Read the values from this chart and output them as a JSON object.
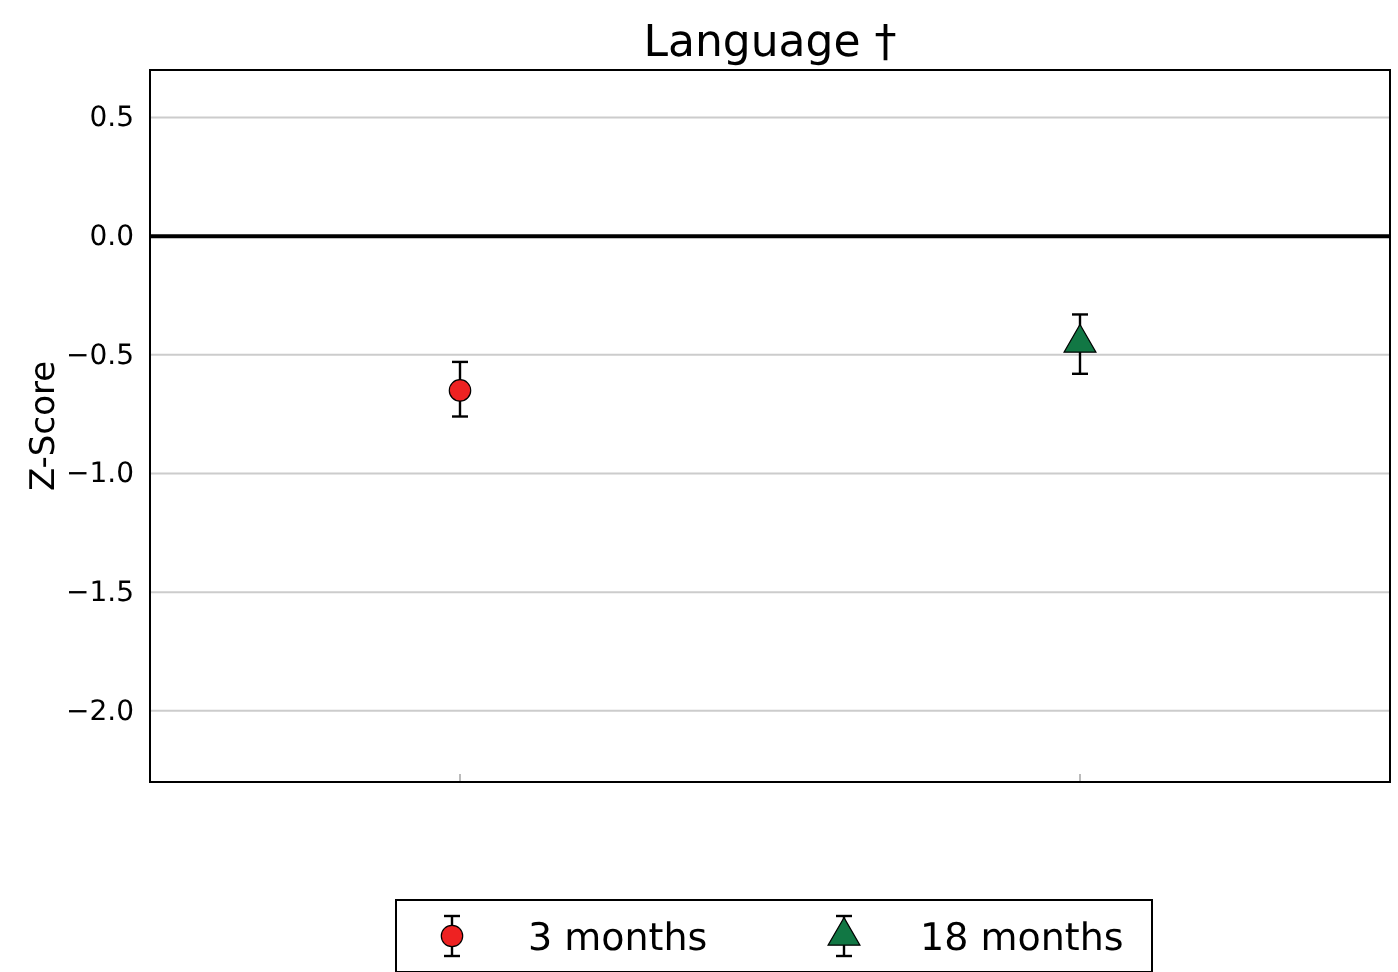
{
  "chart_data": {
    "type": "scatter",
    "title": "Language †",
    "ylabel": "Z-Score",
    "categories": [
      null,
      null
    ],
    "series": [
      {
        "name": "3 months",
        "color": "#ee2222",
        "marker": "circle",
        "values": [
          -0.65,
          null
        ],
        "errors": [
          [
            -0.76,
            -0.53
          ],
          null
        ]
      },
      {
        "name": "18 months",
        "color": "#117744",
        "marker": "triangle",
        "values": [
          null,
          -0.45
        ],
        "errors": [
          null,
          [
            -0.58,
            -0.33
          ]
        ]
      }
    ],
    "ylim": [
      -2.3,
      0.7
    ],
    "yticks": [
      {
        "value": -2.0,
        "label": "−2.0"
      },
      {
        "value": -1.5,
        "label": "−1.5"
      },
      {
        "value": -1.0,
        "label": "−1.0"
      },
      {
        "value": -0.5,
        "label": "−0.5"
      },
      {
        "value": 0,
        "label": "0.0"
      },
      {
        "value": 0.5,
        "label": "0.5"
      }
    ],
    "grid": "y",
    "legend": "bottom",
    "ref_lines": [
      {
        "axis": "y",
        "value": 0,
        "color": "#000000"
      }
    ]
  }
}
